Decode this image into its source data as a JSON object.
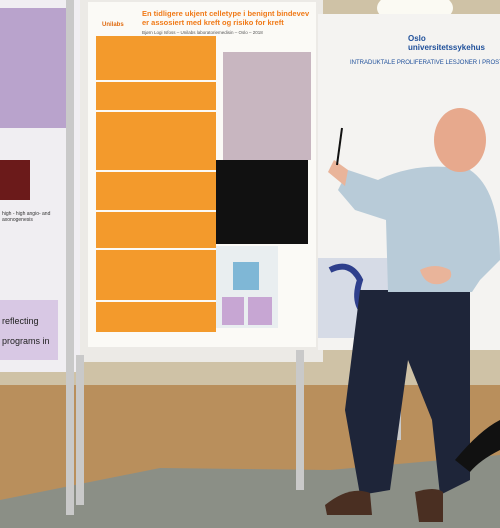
{
  "left_poster": {
    "lines": [
      "high - high angio- and axonogenesis",
      "reflecting",
      "programs in"
    ]
  },
  "center_poster": {
    "logo": "Unilabs",
    "title": "En tidligere ukjent celletype i benignt bindevev er assosiert med kreft og risiko for kreft",
    "author": "Bjørn Logi Isfoss – Unilabs laboratoriemedisin – Oslo – 2018"
  },
  "right_poster": {
    "logo": "Oslo universitetssykehus",
    "title": "INTRADUKTALE PROLIFERATIVE LESJONER I PROSTATA"
  }
}
